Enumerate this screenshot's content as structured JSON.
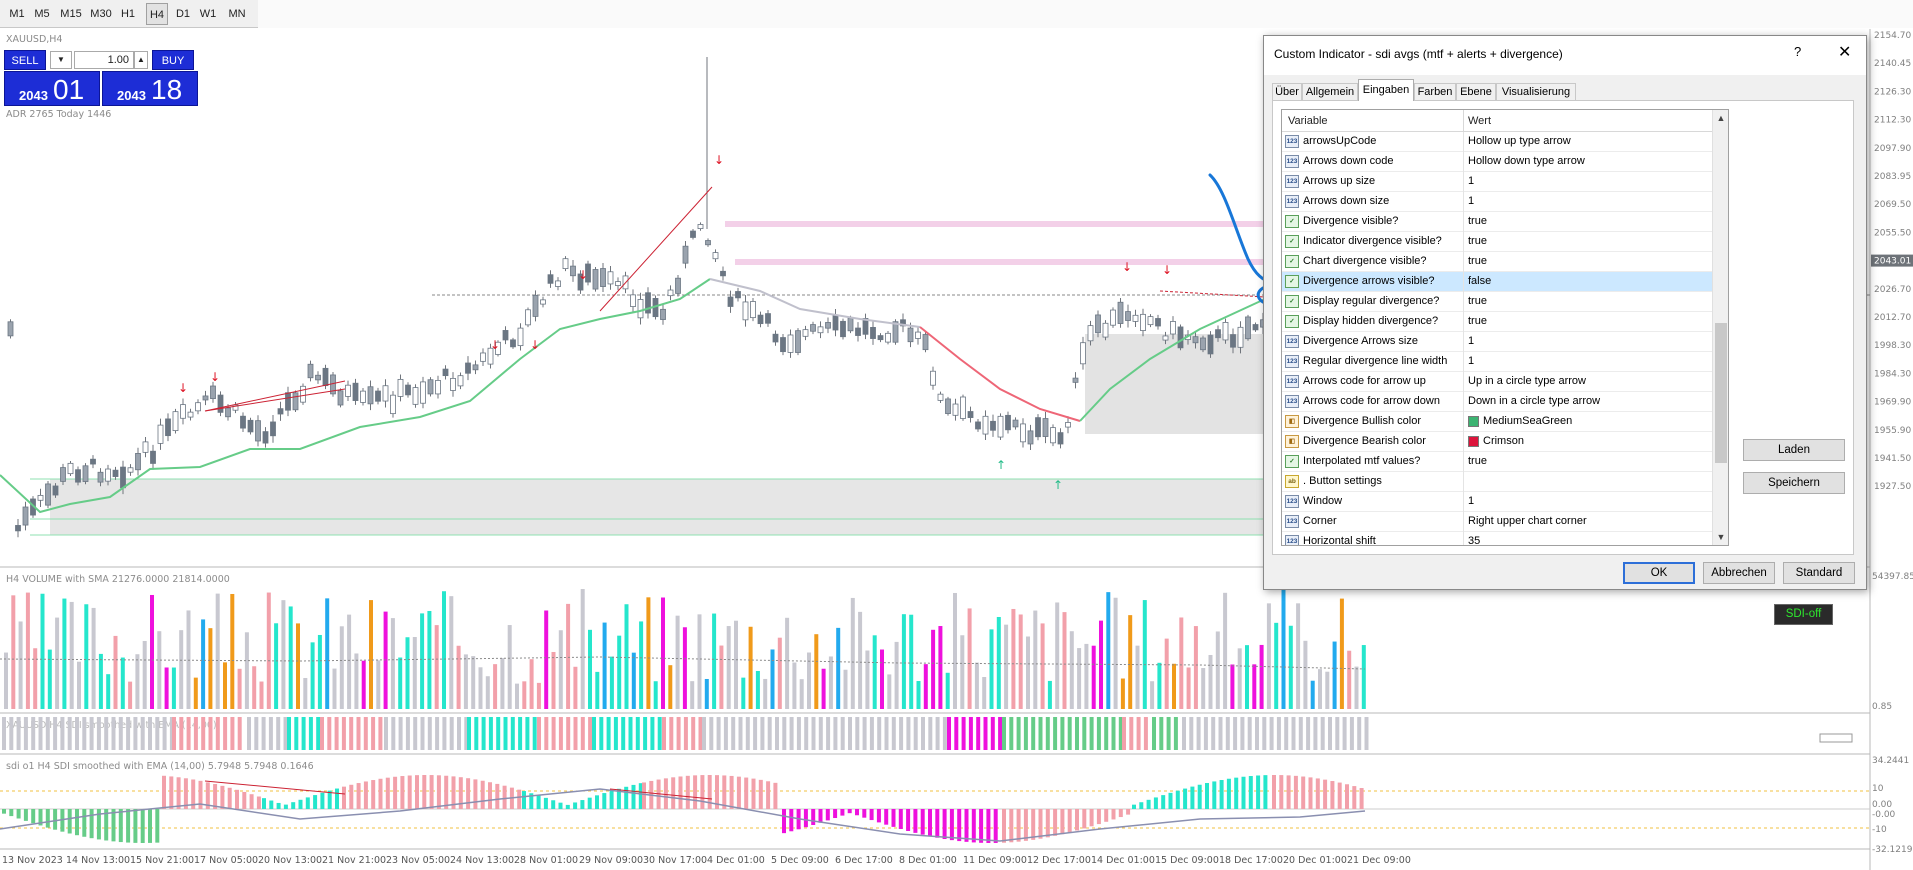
{
  "toolbar": {
    "timeframes": [
      {
        "label": "M1"
      },
      {
        "label": "M5"
      },
      {
        "label": "M15"
      },
      {
        "label": "M30"
      },
      {
        "label": "H1"
      },
      {
        "label": "H4"
      },
      {
        "label": "D1"
      },
      {
        "label": "W1"
      },
      {
        "label": "MN"
      }
    ],
    "active": "H4"
  },
  "chart": {
    "symbol_label": "XAUUSD,H4",
    "adr_label": "ADR 2765  Today 1446",
    "price_labels": [
      "2154.70",
      "2140.45",
      "2126.30",
      "2112.30",
      "2097.90",
      "2083.95",
      "2069.50",
      "2055.50",
      "2043.01",
      "2026.70",
      "2012.70",
      "1998.30",
      "1984.30",
      "1969.90",
      "1955.90",
      "1941.50",
      "1927.50"
    ],
    "current_price": "2043.01",
    "volume_pane_label": "H4 VOLUME with SMA 21276.0000 21814.0000",
    "volume_scale": [
      "54397.85",
      "0.85"
    ],
    "sdi_pane_label": "XAUUSD H4 SDI smoothed with EMA (14,00)",
    "osc_pane_label": "sdi o1 H4 SDI smoothed with EMA (14,00) 5.7948 5.7948 0.1646",
    "osc_scale": [
      "34.2441",
      "10",
      "0.00",
      "-0.00",
      "-10",
      "-32.1219"
    ],
    "dates": [
      "13 Nov 2023",
      "14 Nov 13:00",
      "15 Nov 21:00",
      "17 Nov 05:00",
      "20 Nov 13:00",
      "21 Nov 21:00",
      "23 Nov 05:00",
      "24 Nov 13:00",
      "28 Nov 01:00",
      "29 Nov 09:00",
      "30 Nov 17:00",
      "4 Dec 01:00",
      "5 Dec 09:00",
      "6 Dec 17:00",
      "8 Dec 01:00",
      "11 Dec 09:00",
      "12 Dec 17:00",
      "14 Dec 01:00",
      "15 Dec 09:00",
      "18 Dec 17:00",
      "20 Dec 01:00",
      "21 Dec 09:00"
    ],
    "sdi_off_label": "SDI-off",
    "colors": {
      "bull": "#6b7683",
      "ma_up": "#66cc88",
      "ma_down": "#ee6677",
      "ma_flat": "#c0c0cc",
      "cyan": "#25e6cc",
      "pink": "#f2a0aa",
      "magenta": "#ee11dd",
      "grey": "#c8c8d0",
      "blue": "#22aaee",
      "orange": "#f09a1a"
    }
  },
  "trade_panel": {
    "sell_label": "SELL",
    "buy_label": "BUY",
    "lot": "1.00",
    "bid_prefix": "2043",
    "bid_big": "01",
    "ask_prefix": "2043",
    "ask_big": "18",
    "dropdown_glyph": "▼",
    "spin_glyph": "▲"
  },
  "dialog": {
    "title": "Custom Indicator - sdi avgs (mtf + alerts + divergence)",
    "help_glyph": "?",
    "close_glyph": "✕",
    "tabs": [
      {
        "label": "Über"
      },
      {
        "label": "Allgemein"
      },
      {
        "label": "Eingaben"
      },
      {
        "label": "Farben"
      },
      {
        "label": "Ebene"
      },
      {
        "label": "Visualisierung"
      }
    ],
    "active_tab": "Eingaben",
    "columns": {
      "variable": "Variable",
      "value": "Wert"
    },
    "rows": [
      {
        "icon": "123",
        "type": "num",
        "variable": "arrowsUpCode",
        "value": "Hollow up type arrow"
      },
      {
        "icon": "123",
        "type": "num",
        "variable": "Arrows down code",
        "value": "Hollow down type arrow"
      },
      {
        "icon": "123",
        "type": "num",
        "variable": "Arrows up size",
        "value": "1"
      },
      {
        "icon": "123",
        "type": "num",
        "variable": "Arrows down size",
        "value": "1"
      },
      {
        "icon": "✓",
        "type": "bool",
        "variable": "Divergence visible?",
        "value": "true"
      },
      {
        "icon": "✓",
        "type": "bool",
        "variable": "Indicator divergence visible?",
        "value": "true"
      },
      {
        "icon": "✓",
        "type": "bool",
        "variable": "Chart divergence visible?",
        "value": "true"
      },
      {
        "icon": "✓",
        "type": "bool",
        "variable": "Divergence arrows visible?",
        "value": "false",
        "selected": true
      },
      {
        "icon": "✓",
        "type": "bool",
        "variable": "Display regular divergence?",
        "value": "true"
      },
      {
        "icon": "✓",
        "type": "bool",
        "variable": "Display hidden divergence?",
        "value": "true"
      },
      {
        "icon": "123",
        "type": "num",
        "variable": "Divergence Arrows size",
        "value": "1"
      },
      {
        "icon": "123",
        "type": "num",
        "variable": "Regular divergence line width",
        "value": "1"
      },
      {
        "icon": "123",
        "type": "num",
        "variable": "Arrows code for arrow up",
        "value": "Up in a circle type arrow"
      },
      {
        "icon": "123",
        "type": "num",
        "variable": "Arrows code for arrow down",
        "value": "Down in a circle type arrow"
      },
      {
        "icon": "◧",
        "type": "color",
        "variable": "Divergence Bullish color",
        "value": "MediumSeaGreen",
        "swatch": "#3cb371"
      },
      {
        "icon": "◧",
        "type": "color",
        "variable": "Divergence Bearish color",
        "value": "Crimson",
        "swatch": "#dc143c"
      },
      {
        "icon": "✓",
        "type": "bool",
        "variable": "Interpolated mtf values?",
        "value": "true"
      },
      {
        "icon": "ab",
        "type": "str",
        "variable": ". Button settings",
        "value": ""
      },
      {
        "icon": "123",
        "type": "num",
        "variable": "Window",
        "value": "1"
      },
      {
        "icon": "123",
        "type": "num",
        "variable": "Corner",
        "value": "Right upper chart corner"
      },
      {
        "icon": "123",
        "type": "num",
        "variable": "Horizontal shift",
        "value": "35"
      }
    ],
    "scroll_up": "▲",
    "scroll_down": "▼",
    "load_label": "Laden",
    "save_label": "Speichern",
    "ok_label": "OK",
    "cancel_label": "Abbrechen",
    "default_label": "Standard"
  }
}
